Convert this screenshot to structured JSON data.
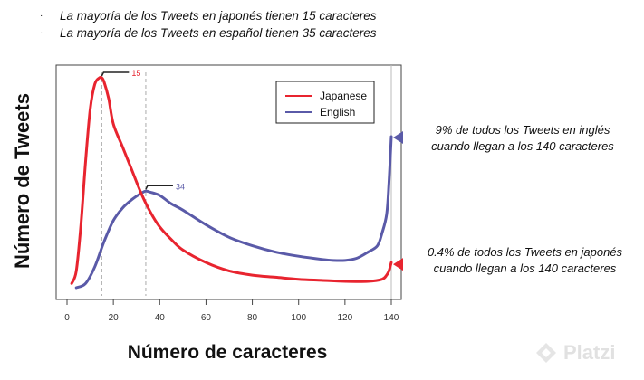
{
  "bullets": [
    "La mayoría de los Tweets en japonés tienen 15 caracteres",
    "La mayoría de los Tweets en español tienen 35 caracteres"
  ],
  "bullet_symbol": "·",
  "annotations": {
    "english": [
      "9% de todos los Tweets en inglés",
      "cuando llegan a los 140 caracteres"
    ],
    "japanese": [
      "0.4% de todos los Tweets en japonés",
      "cuando llegan a los 140 caracteres"
    ]
  },
  "watermark": {
    "text": "Platzi",
    "icon": "platzi-logo-icon"
  },
  "colors": {
    "japanese": "#e8242f",
    "english": "#5a5aa8",
    "frame": "#444444",
    "dashed": "#aaaaaa"
  },
  "chart_data": {
    "type": "line",
    "xlabel": "Número de caracteres",
    "ylabel": "Número de Tweets",
    "xlim": [
      0,
      140
    ],
    "xticks": [
      0,
      20,
      40,
      60,
      80,
      100,
      120,
      140
    ],
    "grid": false,
    "legend_position": "top-right",
    "marker_lines": [
      {
        "x": 15,
        "label": "15",
        "series": "Japanese"
      },
      {
        "x": 34,
        "label": "34",
        "series": "English"
      }
    ],
    "series": [
      {
        "name": "Japanese",
        "color": "#e8242f",
        "points": [
          [
            2,
            0.02
          ],
          [
            4,
            0.08
          ],
          [
            6,
            0.3
          ],
          [
            8,
            0.6
          ],
          [
            10,
            0.85
          ],
          [
            12,
            0.97
          ],
          [
            14,
            1.0
          ],
          [
            15,
            1.0
          ],
          [
            16,
            0.98
          ],
          [
            18,
            0.9
          ],
          [
            20,
            0.78
          ],
          [
            24,
            0.67
          ],
          [
            28,
            0.56
          ],
          [
            32,
            0.45
          ],
          [
            36,
            0.36
          ],
          [
            40,
            0.29
          ],
          [
            45,
            0.23
          ],
          [
            50,
            0.18
          ],
          [
            60,
            0.12
          ],
          [
            70,
            0.08
          ],
          [
            80,
            0.06
          ],
          [
            90,
            0.05
          ],
          [
            100,
            0.04
          ],
          [
            110,
            0.035
          ],
          [
            120,
            0.03
          ],
          [
            130,
            0.03
          ],
          [
            136,
            0.04
          ],
          [
            138,
            0.06
          ],
          [
            139,
            0.08
          ],
          [
            140,
            0.12
          ]
        ]
      },
      {
        "name": "English",
        "color": "#5a5aa8",
        "points": [
          [
            4,
            0.0
          ],
          [
            8,
            0.02
          ],
          [
            12,
            0.1
          ],
          [
            16,
            0.22
          ],
          [
            20,
            0.32
          ],
          [
            24,
            0.38
          ],
          [
            28,
            0.42
          ],
          [
            32,
            0.45
          ],
          [
            34,
            0.46
          ],
          [
            36,
            0.455
          ],
          [
            40,
            0.44
          ],
          [
            45,
            0.4
          ],
          [
            50,
            0.37
          ],
          [
            60,
            0.3
          ],
          [
            70,
            0.24
          ],
          [
            80,
            0.2
          ],
          [
            90,
            0.17
          ],
          [
            100,
            0.15
          ],
          [
            110,
            0.135
          ],
          [
            115,
            0.13
          ],
          [
            120,
            0.13
          ],
          [
            125,
            0.14
          ],
          [
            130,
            0.17
          ],
          [
            134,
            0.2
          ],
          [
            136,
            0.26
          ],
          [
            138,
            0.35
          ],
          [
            139,
            0.5
          ],
          [
            140,
            0.72
          ]
        ]
      }
    ]
  }
}
